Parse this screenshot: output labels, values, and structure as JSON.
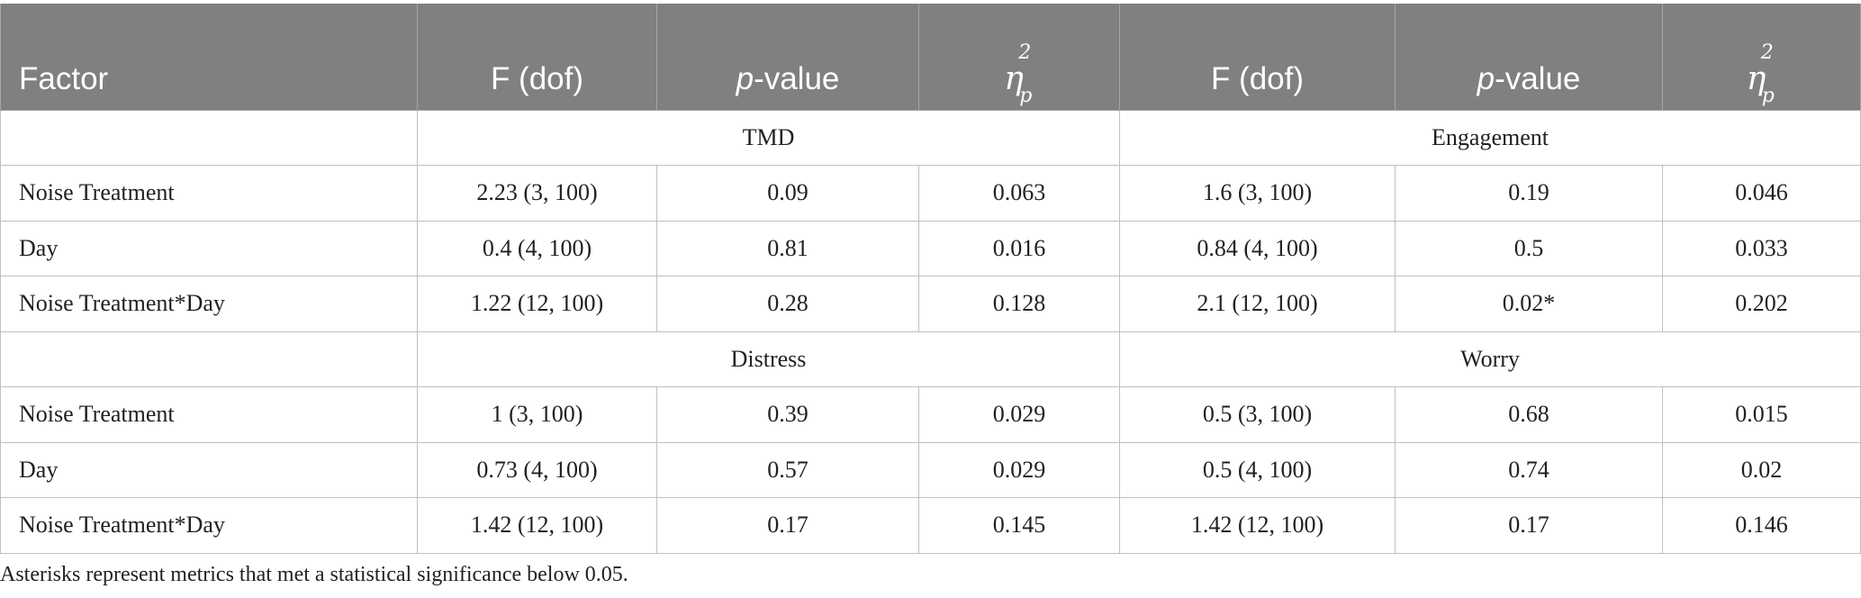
{
  "header": {
    "factor": "Factor",
    "f_dof": "F (dof)",
    "p_letter": "p",
    "p_rest": "-value",
    "eta": "η",
    "eta_sup": "2",
    "eta_sub": "p"
  },
  "groups": [
    {
      "left": "TMD",
      "right": "Engagement",
      "rows": [
        {
          "factor": "Noise Treatment",
          "f1": "2.23 (3, 100)",
          "p1": "0.09",
          "e1": "0.063",
          "f2": "1.6 (3, 100)",
          "p2": "0.19",
          "e2": "0.046"
        },
        {
          "factor": "Day",
          "f1": "0.4 (4, 100)",
          "p1": "0.81",
          "e1": "0.016",
          "f2": "0.84 (4, 100)",
          "p2": "0.5",
          "e2": "0.033"
        },
        {
          "factor": "Noise Treatment*Day",
          "f1": "1.22 (12, 100)",
          "p1": "0.28",
          "e1": "0.128",
          "f2": "2.1 (12, 100)",
          "p2": "0.02*",
          "e2": "0.202"
        }
      ]
    },
    {
      "left": "Distress",
      "right": "Worry",
      "rows": [
        {
          "factor": "Noise Treatment",
          "f1": "1 (3, 100)",
          "p1": "0.39",
          "e1": "0.029",
          "f2": "0.5 (3, 100)",
          "p2": "0.68",
          "e2": "0.015"
        },
        {
          "factor": "Day",
          "f1": "0.73 (4, 100)",
          "p1": "0.57",
          "e1": "0.029",
          "f2": "0.5 (4, 100)",
          "p2": "0.74",
          "e2": "0.02"
        },
        {
          "factor": "Noise Treatment*Day",
          "f1": "1.42 (12, 100)",
          "p1": "0.17",
          "e1": "0.145",
          "f2": "1.42 (12, 100)",
          "p2": "0.17",
          "e2": "0.146"
        }
      ]
    }
  ],
  "footnote": "Asterisks represent metrics that met a statistical significance below 0.05."
}
